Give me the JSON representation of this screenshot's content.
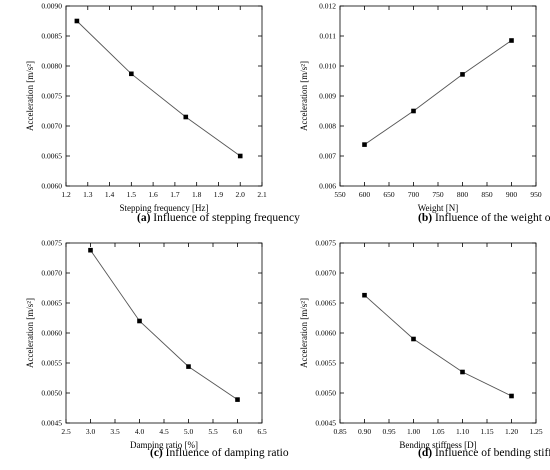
{
  "chart_data": [
    {
      "type": "line",
      "caption_letter": "(a)",
      "caption": " Influence of stepping frequency",
      "xlabel": "Stepping frequency [Hz]",
      "ylabel": "Acceleration [m/s²]",
      "xlim": [
        1.2,
        2.1
      ],
      "ylim": [
        0.006,
        0.009
      ],
      "xticks": [
        "1.2",
        "1.3",
        "1.4",
        "1.5",
        "1.6",
        "1.7",
        "1.8",
        "1.9",
        "2.0",
        "2.1"
      ],
      "yticks": [
        "0.0060",
        "0.0065",
        "0.0070",
        "0.0075",
        "0.0080",
        "0.0085",
        "0.0090"
      ],
      "x": [
        1.25,
        1.5,
        1.75,
        2.0
      ],
      "y": [
        0.00875,
        0.00787,
        0.00715,
        0.0065
      ],
      "grid": false
    },
    {
      "type": "line",
      "caption_letter": "(b)",
      "caption": " Influence of the weight of the volunteer",
      "xlabel": "Weight [N]",
      "ylabel": "Acceleration [m/s²]",
      "xlim": [
        550,
        950
      ],
      "ylim": [
        0.006,
        0.012
      ],
      "xticks": [
        "550",
        "600",
        "650",
        "700",
        "750",
        "800",
        "850",
        "900",
        "950"
      ],
      "yticks": [
        "0.006",
        "0.007",
        "0.008",
        "0.009",
        "0.010",
        "0.011",
        "0.012"
      ],
      "x": [
        600,
        700,
        800,
        900
      ],
      "y": [
        0.00738,
        0.0085,
        0.00972,
        0.01085
      ],
      "grid": false
    },
    {
      "type": "line",
      "caption_letter": "(c)",
      "caption": " Influence of damping ratio",
      "xlabel": "Damping ratio [%]",
      "ylabel": "Acceleration [m/s²]",
      "xlim": [
        2.5,
        6.5
      ],
      "ylim": [
        0.0045,
        0.0075
      ],
      "xticks": [
        "2.5",
        "3.0",
        "3.5",
        "4.0",
        "4.5",
        "5.0",
        "5.5",
        "6.0",
        "6.5"
      ],
      "yticks": [
        "0.0045",
        "0.0050",
        "0.0055",
        "0.0060",
        "0.0065",
        "0.0070",
        "0.0075"
      ],
      "x": [
        3,
        4,
        5,
        6
      ],
      "y": [
        0.00738,
        0.0062,
        0.00544,
        0.00489
      ],
      "grid": false
    },
    {
      "type": "line",
      "caption_letter": "(d)",
      "caption": " Influence of bending stiffness",
      "xlabel": "Bending stiffness [D]",
      "ylabel": "Acceleration [m/s²]",
      "xlim": [
        0.85,
        1.25
      ],
      "ylim": [
        0.0045,
        0.0075
      ],
      "xticks": [
        "0.85",
        "0.90",
        "0.95",
        "1.00",
        "1.05",
        "1.10",
        "1.15",
        "1.20",
        "1.25"
      ],
      "yticks": [
        "0.0045",
        "0.0050",
        "0.0055",
        "0.0060",
        "0.0065",
        "0.0070",
        "0.0075"
      ],
      "x": [
        0.9,
        1.0,
        1.1,
        1.2
      ],
      "y": [
        0.00663,
        0.0059,
        0.00535,
        0.00495
      ],
      "grid": false
    }
  ],
  "colors": {
    "line": "#555555",
    "marker": "#000000",
    "frame": "#000000"
  }
}
